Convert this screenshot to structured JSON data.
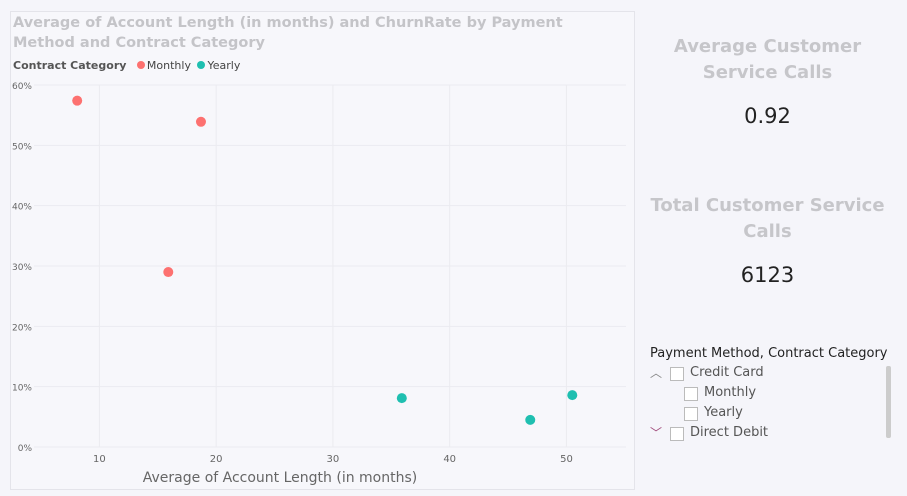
{
  "chart_data": {
    "type": "scatter",
    "title": "Average of Account Length (in months) and ChurnRate by Payment Method and Contract Category",
    "xlabel": "Average of Account Length (in months)",
    "ylabel": "",
    "legend_title": "Contract Category",
    "legend_position": "top-left",
    "grid": true,
    "xlim": [
      4.4,
      55.1
    ],
    "ylim": [
      0,
      60
    ],
    "x_ticks": [
      10,
      20,
      30,
      40,
      50
    ],
    "x_tick_labels": [
      "10",
      "20",
      "30",
      "40",
      "50"
    ],
    "y_ticks": [
      0,
      10,
      20,
      30,
      40,
      50,
      60
    ],
    "y_tick_labels": [
      "0%",
      "10%",
      "20%",
      "30%",
      "40%",
      "50%",
      "60%"
    ],
    "series": [
      {
        "name": "Monthly",
        "color": "#fd7170",
        "points": [
          [
            8.1,
            57.4
          ],
          [
            18.7,
            53.9
          ],
          [
            15.9,
            29.0
          ]
        ]
      },
      {
        "name": "Yearly",
        "color": "#1fbfb0",
        "points": [
          [
            35.9,
            8.1
          ],
          [
            46.9,
            4.5
          ],
          [
            50.5,
            8.6
          ]
        ]
      }
    ]
  },
  "kpis": [
    {
      "label": "Average Customer Service Calls",
      "value": "0.92"
    },
    {
      "label": "Total Customer Service Calls",
      "value": "6123"
    }
  ],
  "slicer": {
    "title": "Payment Method, Contract Category",
    "items": [
      {
        "label": "Credit Card",
        "level": 0,
        "expanded": true
      },
      {
        "label": "Monthly",
        "level": 1
      },
      {
        "label": "Yearly",
        "level": 1
      },
      {
        "label": "Direct Debit",
        "level": 0,
        "expanded": false
      }
    ]
  }
}
